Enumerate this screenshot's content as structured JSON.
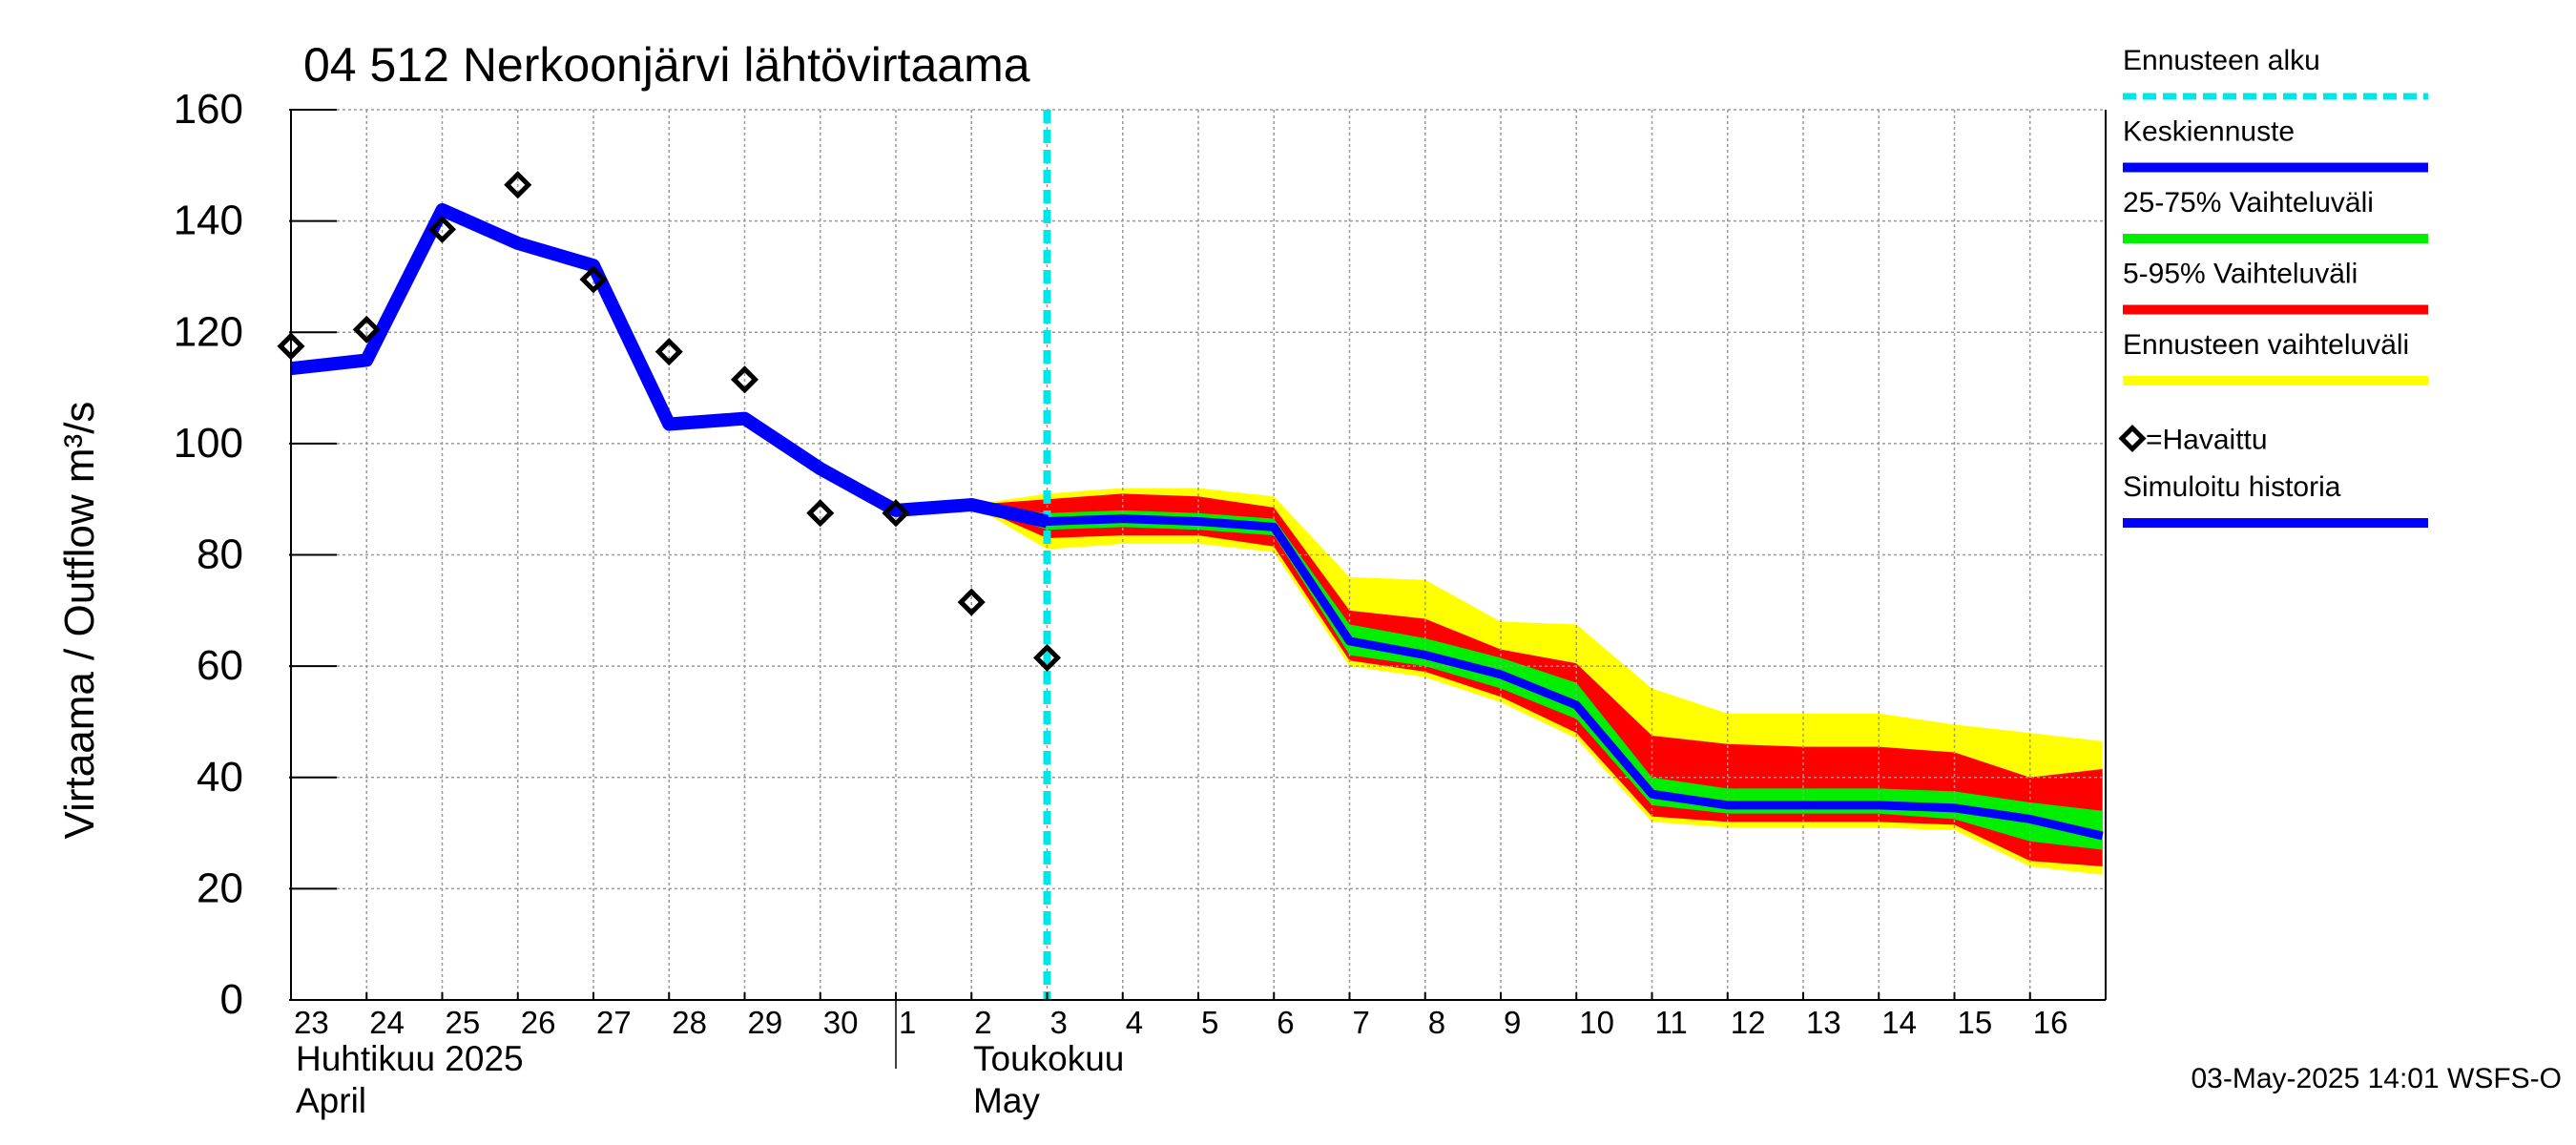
{
  "chart_data": {
    "type": "line",
    "title": "04 512 Nerkoonjärvi lähtövirtaama",
    "ylabel": "Virtaama / Outflow    m³/s",
    "ylim": [
      0,
      160
    ],
    "yticks": [
      0,
      20,
      40,
      60,
      80,
      100,
      120,
      140,
      160
    ],
    "x_day_labels": [
      "23",
      "24",
      "25",
      "26",
      "27",
      "28",
      "29",
      "30",
      "1",
      "2",
      "3",
      "4",
      "5",
      "6",
      "7",
      "8",
      "9",
      "10",
      "11",
      "12",
      "13",
      "14",
      "15",
      "16"
    ],
    "x_start": "2025-04-23",
    "month_labels": [
      {
        "line1": "Huhtikuu  2025",
        "line2": "April"
      },
      {
        "line1": "Toukokuu",
        "line2": "May"
      }
    ],
    "grid": true,
    "forecast_start": "2025-05-03",
    "colors": {
      "forecast_start": "#00e5e5",
      "median": "#0000ff",
      "p25_75": "#00ee00",
      "p5_95": "#ff0000",
      "full_range": "#ffff00",
      "history": "#0000ff"
    },
    "series": {
      "simulated_history": {
        "name": "Simuloitu historia",
        "x": [
          "2025-04-23",
          "2025-04-24",
          "2025-04-25",
          "2025-04-26",
          "2025-04-27",
          "2025-04-28",
          "2025-04-29",
          "2025-04-30",
          "2025-05-01",
          "2025-05-02",
          "2025-05-03"
        ],
        "values": [
          113.5,
          115,
          142,
          136,
          132,
          103.5,
          104.5,
          95.5,
          88,
          89,
          86
        ]
      },
      "observed": {
        "name": "=Havaittu",
        "x": [
          "2025-04-23",
          "2025-04-24",
          "2025-04-25",
          "2025-04-26",
          "2025-04-27",
          "2025-04-28",
          "2025-04-29",
          "2025-04-30",
          "2025-05-01",
          "2025-05-02",
          "2025-05-03"
        ],
        "values": [
          117.5,
          120.5,
          138.5,
          146.5,
          129.5,
          116.5,
          111.5,
          87.5,
          87.5,
          71.5,
          61.5
        ]
      },
      "median_forecast": {
        "name": "Keskiennuste",
        "x": [
          "2025-05-02",
          "2025-05-03",
          "2025-05-04",
          "2025-05-05",
          "2025-05-06",
          "2025-05-07",
          "2025-05-08",
          "2025-05-09",
          "2025-05-10",
          "2025-05-11",
          "2025-05-12",
          "2025-05-13",
          "2025-05-14",
          "2025-05-15",
          "2025-05-16",
          "2025-05-16T23"
        ],
        "values": [
          89,
          86,
          86.5,
          86,
          85,
          64.5,
          62,
          58.5,
          53,
          37,
          35,
          35,
          35,
          34.5,
          32.5,
          29.5
        ]
      },
      "bands": {
        "x": [
          "2025-05-02",
          "2025-05-03",
          "2025-05-04",
          "2025-05-05",
          "2025-05-06",
          "2025-05-07",
          "2025-05-08",
          "2025-05-09",
          "2025-05-10",
          "2025-05-11",
          "2025-05-12",
          "2025-05-13",
          "2025-05-14",
          "2025-05-15",
          "2025-05-16",
          "2025-05-16T23"
        ],
        "full_range": {
          "name": "Ennusteen vaihteluväli",
          "upper": [
            89,
            91,
            92,
            92,
            90.5,
            76,
            75.5,
            68,
            67.5,
            56,
            51.5,
            51.5,
            51.5,
            49.5,
            48,
            46.5
          ],
          "lower": [
            89,
            81,
            82,
            82,
            80.5,
            60,
            58,
            53.5,
            47,
            32,
            31,
            31,
            31,
            30.5,
            24,
            22.5
          ]
        },
        "p5_95": {
          "name": "5-95% Vaihteluväli",
          "upper": [
            89,
            90,
            91,
            90.5,
            88.5,
            70,
            68.5,
            63,
            60.5,
            47.5,
            46,
            45.5,
            45.5,
            44.5,
            40,
            41.5
          ],
          "lower": [
            89,
            83,
            83.5,
            83.5,
            81.5,
            61,
            59,
            54.5,
            48,
            33,
            32,
            32,
            32,
            31.5,
            25,
            24
          ]
        },
        "p25_75": {
          "name": "25-75% Vaihteluväli",
          "upper": [
            89,
            87.5,
            88,
            87.5,
            86.5,
            67.5,
            65,
            61.5,
            57,
            40,
            38,
            38,
            38,
            37.5,
            35.5,
            34
          ],
          "lower": [
            89,
            84.5,
            85,
            84.5,
            83.5,
            62,
            60,
            56,
            50.5,
            35,
            33.5,
            33.5,
            33.5,
            32.5,
            28.5,
            27
          ]
        }
      }
    },
    "legend": [
      {
        "label": "Ennusteen alku",
        "style": "dashed",
        "color": "#00e5e5"
      },
      {
        "label": "Keskiennuste",
        "style": "line",
        "color": "#0000ff"
      },
      {
        "label": "25-75% Vaihteluväli",
        "style": "line",
        "color": "#00ee00"
      },
      {
        "label": "5-95% Vaihteluväli",
        "style": "line",
        "color": "#ff0000"
      },
      {
        "label": "Ennusteen vaihteluväli",
        "style": "line",
        "color": "#ffff00"
      },
      {
        "label": "=Havaittu",
        "style": "marker",
        "color": "#000000"
      },
      {
        "label": "Simuloitu historia",
        "style": "line",
        "color": "#0000ff"
      }
    ],
    "legend_position": "right",
    "footer": "03-May-2025 14:01 WSFS-O"
  }
}
